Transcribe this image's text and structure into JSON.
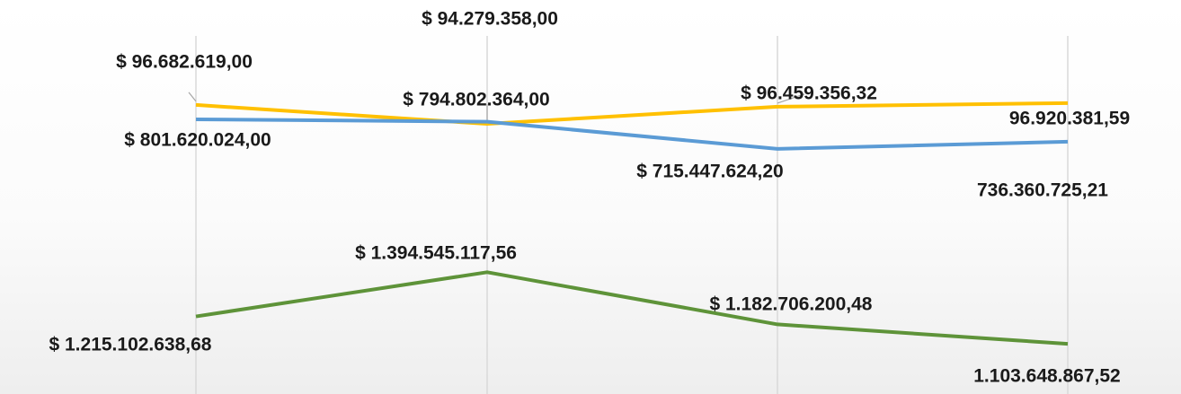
{
  "chart_data": {
    "type": "line",
    "categories": [
      null,
      null,
      null,
      null
    ],
    "series": [
      {
        "color": "#ffc000",
        "ylim": [
          60000000,
          110000000
        ],
        "values": [
          96682619,
          94279358,
          96459356.32,
          96920381.59
        ],
        "value_labels": [
          "$ 96.682.619,00",
          "$ 94.279.358,00",
          "$ 96.459.356,32",
          "96.920.381,59"
        ]
      },
      {
        "color": "#5b9bd5",
        "ylim": [
          0,
          1150000000
        ],
        "values": [
          801620024,
          794802364,
          715447624.2,
          736360725.21
        ],
        "value_labels": [
          "$ 801.620.024,00",
          "$ 794.802.364,00",
          "$ 715.447.624,20",
          "736.360.725,21"
        ]
      },
      {
        "color": "#5e9339",
        "ylim": [
          900000000,
          2500000000
        ],
        "values": [
          1215102638.68,
          1394545117.56,
          1182706200.48,
          1103648867.52
        ],
        "value_labels": [
          "$ 1.215.102.638,68",
          "$ 1.394.545.117,56",
          "$ 1.182.706.200,48",
          "1.103.648.867,52"
        ]
      }
    ]
  }
}
